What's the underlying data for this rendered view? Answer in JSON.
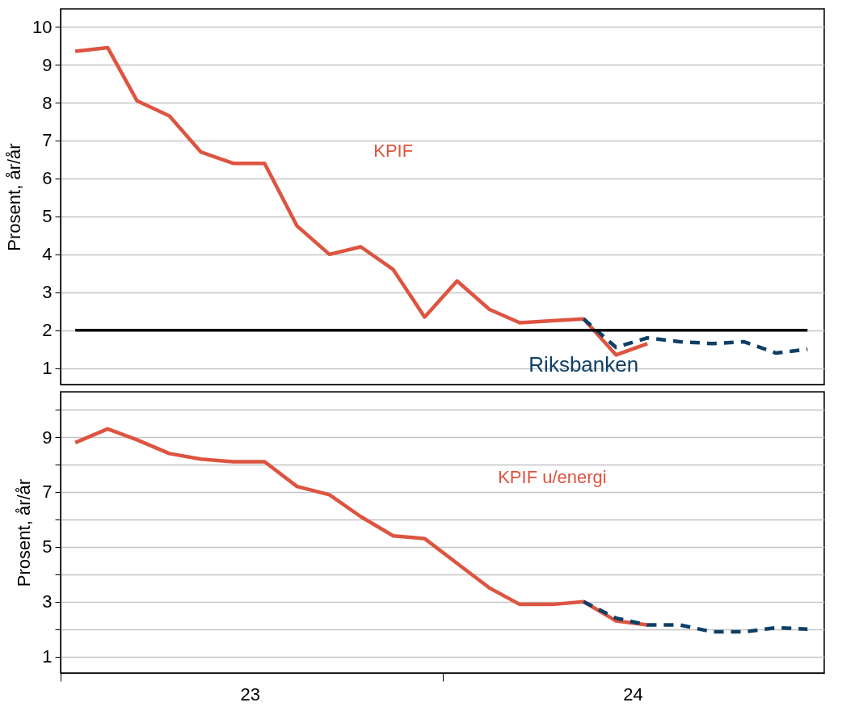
{
  "chart_data": [
    {
      "type": "line",
      "ylabel": "Prosent, år/år",
      "ylim": [
        0.57,
        10.47
      ],
      "yticks": [
        1,
        2,
        3,
        4,
        5,
        6,
        7,
        8,
        9,
        10
      ],
      "xlim": [
        "2023-01-01",
        "2024-12-31"
      ],
      "grid": "y",
      "tick_labels": "y",
      "series": [
        {
          "name": "KPIF",
          "color": "#dd5440",
          "line_style": "solid",
          "x": [
            "2023-01-15",
            "2023-02-15",
            "2023-03-15",
            "2023-04-15",
            "2023-05-15",
            "2023-06-15",
            "2023-07-15",
            "2023-08-15",
            "2023-09-15",
            "2023-10-15",
            "2023-11-15",
            "2023-12-15",
            "2024-01-15",
            "2024-02-15",
            "2024-03-15",
            "2024-04-15",
            "2024-05-15",
            "2024-06-15",
            "2024-07-15"
          ],
          "values": [
            9.35,
            9.45,
            8.05,
            7.65,
            6.7,
            6.4,
            6.4,
            4.75,
            4.0,
            4.2,
            3.6,
            2.35,
            3.3,
            2.55,
            2.2,
            2.25,
            2.3,
            1.35,
            1.65
          ]
        },
        {
          "name": "Riksbanken",
          "color": "#0e3f66",
          "line_style": "dashed",
          "x": [
            "2024-05-15",
            "2024-06-15",
            "2024-07-15",
            "2024-08-15",
            "2024-09-15",
            "2024-10-15",
            "2024-11-15",
            "2024-12-15"
          ],
          "values": [
            2.3,
            1.55,
            1.8,
            1.7,
            1.65,
            1.7,
            1.4,
            1.5
          ]
        }
      ],
      "ref_lines": [
        {
          "axis": "y",
          "value": 2,
          "color": "#000000",
          "line_style": "solid"
        }
      ]
    },
    {
      "type": "line",
      "ylabel": "Prosent, år/år",
      "ylim": [
        0.4,
        10.65
      ],
      "yticks": [
        1,
        {
          "value": 2,
          "label": null
        },
        3,
        {
          "value": 4,
          "label": null
        },
        5,
        {
          "value": 6,
          "label": null
        },
        7,
        {
          "value": 8,
          "label": null
        },
        9,
        {
          "value": 10,
          "label": null
        }
      ],
      "xlim": [
        "2023-01-01",
        "2024-12-31"
      ],
      "xticks": [
        {
          "value": "2023-01-01",
          "label": null
        },
        {
          "value": "2023-07-01",
          "label": "23"
        },
        {
          "value": "2024-01-01",
          "label": null
        },
        {
          "value": "2024-07-01",
          "label": "24"
        }
      ],
      "grid": "y",
      "series": [
        {
          "name": "KPIF u/energi",
          "color": "#dd5440",
          "line_style": "solid",
          "x": [
            "2023-01-15",
            "2023-02-15",
            "2023-03-15",
            "2023-04-15",
            "2023-05-15",
            "2023-06-15",
            "2023-07-15",
            "2023-08-15",
            "2023-09-15",
            "2023-10-15",
            "2023-11-15",
            "2023-12-15",
            "2024-01-15",
            "2024-02-15",
            "2024-03-15",
            "2024-04-15",
            "2024-05-15",
            "2024-06-15",
            "2024-07-15"
          ],
          "values": [
            8.8,
            9.3,
            8.9,
            8.4,
            8.2,
            8.1,
            8.1,
            7.2,
            6.9,
            6.1,
            5.4,
            5.3,
            4.4,
            3.5,
            2.9,
            2.9,
            3.0,
            2.3,
            2.15
          ]
        },
        {
          "color": "#0e3f66",
          "line_style": "dashed",
          "x": [
            "2024-05-15",
            "2024-06-15",
            "2024-07-15",
            "2024-08-15",
            "2024-09-15",
            "2024-10-15",
            "2024-11-15",
            "2024-12-15"
          ],
          "values": [
            3.0,
            2.4,
            2.15,
            2.15,
            1.9,
            1.9,
            2.05,
            2.0
          ]
        }
      ]
    }
  ]
}
